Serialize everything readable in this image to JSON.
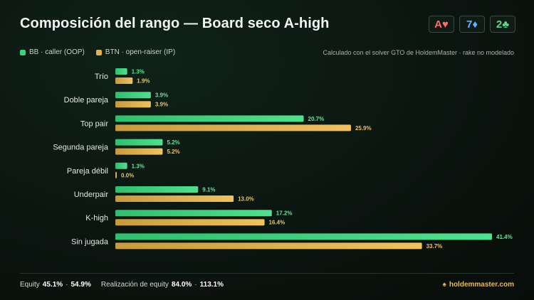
{
  "title": "Composición del rango — Board seco A-high",
  "board": [
    {
      "rank": "A",
      "suit": "♥",
      "color": "#ff6b6b"
    },
    {
      "rank": "7",
      "suit": "♦",
      "color": "#5fb3ff"
    },
    {
      "rank": "2",
      "suit": "♣",
      "color": "#55d98a"
    }
  ],
  "legend": [
    {
      "label": "BB · caller (OOP)",
      "color": "#3ecf7e"
    },
    {
      "label": "BTN · open-raiser (IP)",
      "color": "#e0b24e"
    }
  ],
  "note": "Calculado con el solver GTO de HoldemMaster · rake no modelado",
  "chart_data": {
    "type": "bar",
    "orientation": "horizontal",
    "categories": [
      "Trío",
      "Doble pareja",
      "Top pair",
      "Segunda pareja",
      "Pareja débil",
      "Underpair",
      "K-high",
      "Sin jugada"
    ],
    "series": [
      {
        "name": "BB · caller (OOP)",
        "color": "#3ecf7e",
        "values": [
          1.3,
          3.9,
          20.7,
          5.2,
          1.3,
          9.1,
          17.2,
          41.4
        ]
      },
      {
        "name": "BTN · open-raiser (IP)",
        "color": "#e0b24e",
        "values": [
          1.9,
          3.9,
          25.9,
          5.2,
          0.0,
          13.0,
          16.4,
          33.7
        ]
      }
    ],
    "value_suffix": "%",
    "xlim": [
      0,
      41.4
    ],
    "grid": false,
    "legend_position": "top-left"
  },
  "footer": {
    "equity_label": "Equity",
    "equity_bb": "45.1%",
    "sep": "·",
    "equity_btn": "54.9%",
    "realization_label": "Realización de equity",
    "realization_bb": "84.0%",
    "realization_btn": "113.1%",
    "brand_icon": "♠",
    "brand": "holdemmaster.com"
  }
}
